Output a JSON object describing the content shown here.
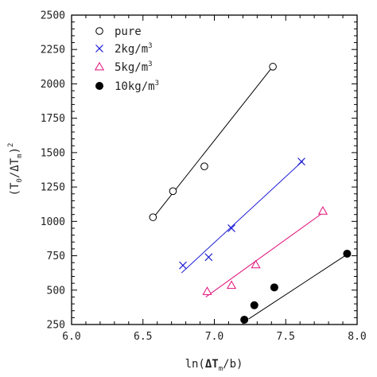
{
  "chart_data": {
    "type": "scatter",
    "x_axis": {
      "label_parts": [
        "ln(",
        "ΔT",
        "m",
        "/b)"
      ],
      "range": [
        6.0,
        8.0
      ],
      "ticks": [
        "6.0",
        "6.5",
        "7.0",
        "7.5",
        "8.0"
      ],
      "tick_values": [
        6.0,
        6.5,
        7.0,
        7.5,
        8.0
      ]
    },
    "y_axis": {
      "label_parts": [
        "(T",
        "0",
        "/ΔT",
        "m",
        ")",
        "2"
      ],
      "range": [
        250,
        2500
      ],
      "ticks": [
        "250",
        "500",
        "750",
        "1000",
        "1250",
        "1500",
        "1750",
        "2000",
        "2250",
        "2500"
      ],
      "tick_values": [
        250,
        500,
        750,
        1000,
        1250,
        1500,
        1750,
        2000,
        2250,
        2500
      ]
    },
    "legend_position": "top-left",
    "series": [
      {
        "name": "pure",
        "legend_parts": [
          "pure",
          ""
        ],
        "marker": "open-circle",
        "color": "#000000",
        "points": [
          [
            6.57,
            1030
          ],
          [
            6.71,
            1220
          ],
          [
            6.93,
            1400
          ],
          [
            7.41,
            2125
          ]
        ],
        "fit": [
          [
            6.56,
            1010
          ],
          [
            7.42,
            2140
          ]
        ]
      },
      {
        "name": "2kg/m3",
        "legend_parts": [
          "2kg/m",
          "3"
        ],
        "marker": "cross",
        "color": "#1f1fd6",
        "points": [
          [
            6.78,
            680
          ],
          [
            6.96,
            740
          ],
          [
            7.12,
            950
          ],
          [
            7.61,
            1435
          ]
        ],
        "fit": [
          [
            6.77,
            625
          ],
          [
            7.62,
            1440
          ]
        ]
      },
      {
        "name": "5kg/m3",
        "legend_parts": [
          "5kg/m",
          "3"
        ],
        "marker": "open-triangle",
        "color": "#e0107a",
        "points": [
          [
            6.95,
            490
          ],
          [
            7.12,
            535
          ],
          [
            7.29,
            685
          ],
          [
            7.76,
            1075
          ]
        ],
        "fit": [
          [
            6.94,
            450
          ],
          [
            7.77,
            1070
          ]
        ]
      },
      {
        "name": "10kg/m3",
        "legend_parts": [
          "10kg/m",
          "3"
        ],
        "marker": "filled-circle",
        "color": "#000000",
        "points": [
          [
            7.21,
            285
          ],
          [
            7.28,
            390
          ],
          [
            7.42,
            520
          ],
          [
            7.93,
            765
          ]
        ],
        "fit": [
          [
            7.24,
            290
          ],
          [
            7.93,
            760
          ]
        ]
      }
    ]
  }
}
